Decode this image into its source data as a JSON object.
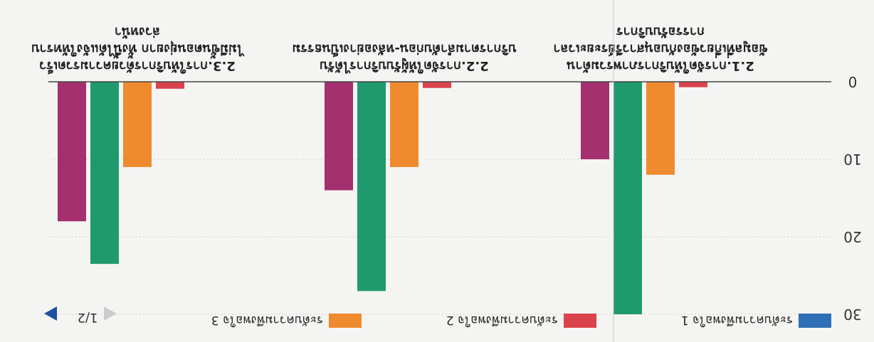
{
  "chart_data": {
    "type": "bar",
    "title": "",
    "xlabel": "",
    "ylabel": "",
    "ylim": [
      0,
      30
    ],
    "yticks": [
      "0",
      "10",
      "20",
      "30"
    ],
    "grid": true,
    "legend_placement": "top",
    "categories": [
      [
        "2.1.การจัดให้บริการภาพรวมด้าน",
        "ข้อมูลที่เกี่ยวข้องกับอนุสาวรีย์ระยะเวลา",
        "การรอรับบริการ"
      ],
      [
        "2.2.การจัดให้ผู้รับบริการได้รับ",
        "บริการตามลำดับก่อน-หลังอย่างเป็นธรรม"
      ],
      [
        "2.3.การให้บริการด้วยความรวดเร็ว",
        "ไม่มีขั้นตอนยุ่งยาก ทั้งนี้ได้แจ้งให้ทราบ",
        "ล่วงหน้า"
      ]
    ],
    "series": [
      {
        "name": "ระดับความพึงพอใจ 1",
        "color": "#2f6fb5",
        "values": [
          0,
          0,
          0
        ]
      },
      {
        "name": "ระดับความพึงพอใจ 2",
        "color": "#d9434b",
        "values": [
          0.7,
          0.8,
          0.9
        ]
      },
      {
        "name": "ระดับความพึงพอใจ 3",
        "color": "#ef8a2e",
        "values": [
          12,
          11,
          11
        ]
      },
      {
        "name": "",
        "color": "#1f9a6e",
        "values": [
          30,
          27,
          23.5
        ]
      },
      {
        "name": "",
        "color": "#a5306f",
        "values": [
          10,
          14,
          18
        ]
      }
    ],
    "pager": "1/2"
  }
}
